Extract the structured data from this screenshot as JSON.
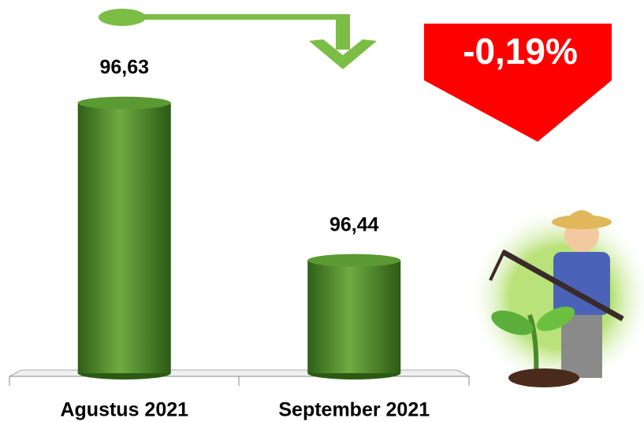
{
  "chart_data": {
    "type": "bar",
    "categories": [
      "Agustus 2021",
      "September 2021"
    ],
    "values": [
      96.63,
      96.44
    ],
    "value_labels": [
      "96,63",
      "96,44"
    ],
    "color": "#4e8a2a",
    "ylim": [
      96.3,
      96.72
    ],
    "annotation": "-0,19%"
  }
}
